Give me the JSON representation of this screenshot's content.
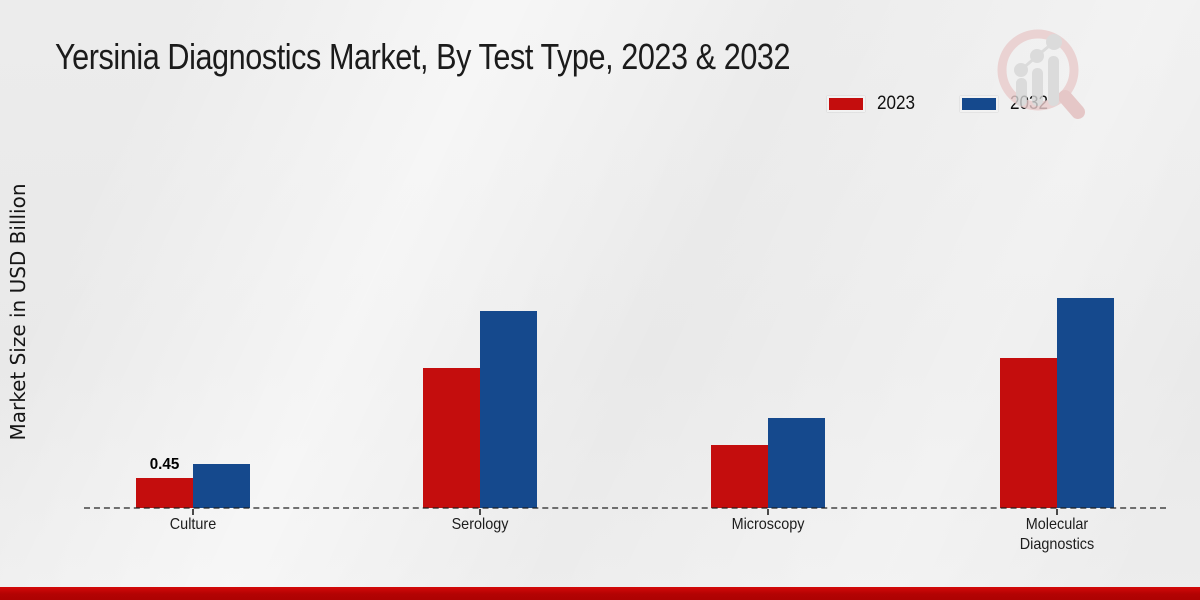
{
  "title": "Yersinia Diagnostics Market, By Test Type, 2023 & 2032",
  "y_axis_label": "Market Size in USD Billion",
  "legend": {
    "items": [
      {
        "label": "2023",
        "color": "#c40d0d"
      },
      {
        "label": "2032",
        "color": "#15498d"
      }
    ]
  },
  "watermark_icon": "market-research-magnifier-logo",
  "colors": {
    "series_2023": "#c40d0d",
    "series_2032": "#15498d",
    "bottom_band": "#b30303",
    "background": "#ebebeb",
    "axis": "#333333"
  },
  "chart_data": {
    "type": "bar",
    "title": "Yersinia Diagnostics Market, By Test Type, 2023 & 2032",
    "xlabel": "",
    "ylabel": "Market Size in USD Billion",
    "categories": [
      "Culture",
      "Serology",
      "Microscopy",
      "Molecular Diagnostics"
    ],
    "series": [
      {
        "name": "2023",
        "color": "#c40d0d",
        "values": [
          0.45,
          2.1,
          0.95,
          2.25
        ]
      },
      {
        "name": "2032",
        "color": "#15498d",
        "values": [
          0.66,
          2.95,
          1.35,
          3.15
        ]
      }
    ],
    "value_labels": [
      {
        "category_index": 0,
        "series_index": 0,
        "text": "0.45"
      }
    ],
    "ylim": [
      0,
      3.5
    ],
    "grid": false,
    "y_axis_ticks_visible": false,
    "baseline_style": "dashed",
    "legend_position": "top-right"
  }
}
